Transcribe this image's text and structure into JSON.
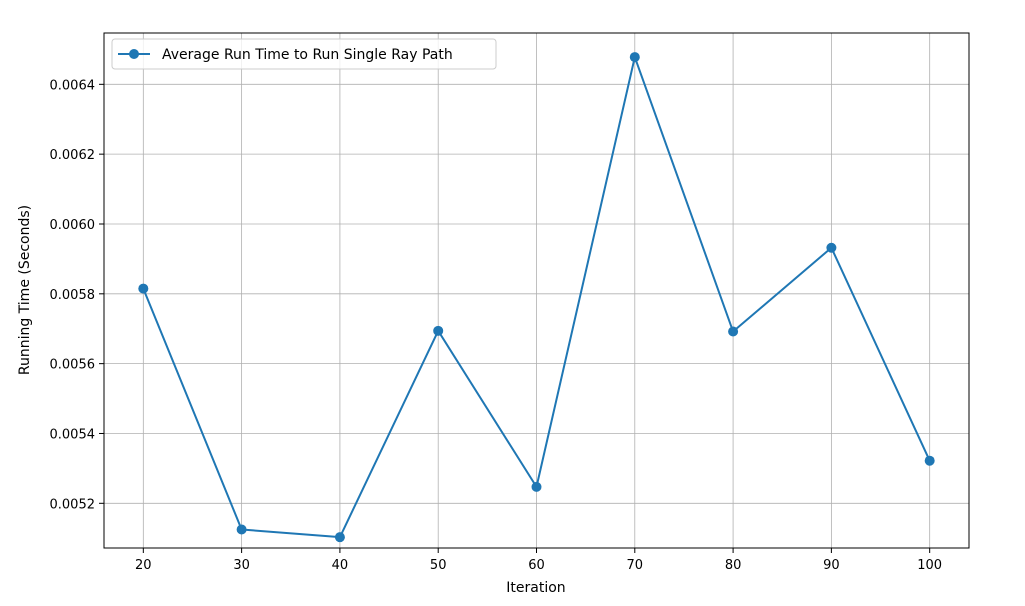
{
  "chart_data": {
    "type": "line",
    "title": "",
    "xlabel": "Iteration",
    "ylabel": "Running Time (Seconds)",
    "x": [
      20,
      30,
      40,
      50,
      60,
      70,
      80,
      90,
      100
    ],
    "series": [
      {
        "name": "Average Run Time to Run Single Ray Path",
        "color": "#1f77b4",
        "marker": "circle",
        "values": [
          0.005815,
          0.005125,
          0.005103,
          0.005694,
          0.005247,
          0.006478,
          0.005692,
          0.005932,
          0.005322
        ]
      }
    ],
    "xticks": [
      "20",
      "30",
      "40",
      "50",
      "60",
      "70",
      "80",
      "90",
      "100"
    ],
    "yticks": [
      "0.0052",
      "0.0054",
      "0.0056",
      "0.0058",
      "0.0060",
      "0.0062",
      "0.0064"
    ],
    "xlim": [
      16,
      104
    ],
    "ylim": [
      0.005072,
      0.006547
    ],
    "grid": true,
    "legend_position": "top-left"
  }
}
